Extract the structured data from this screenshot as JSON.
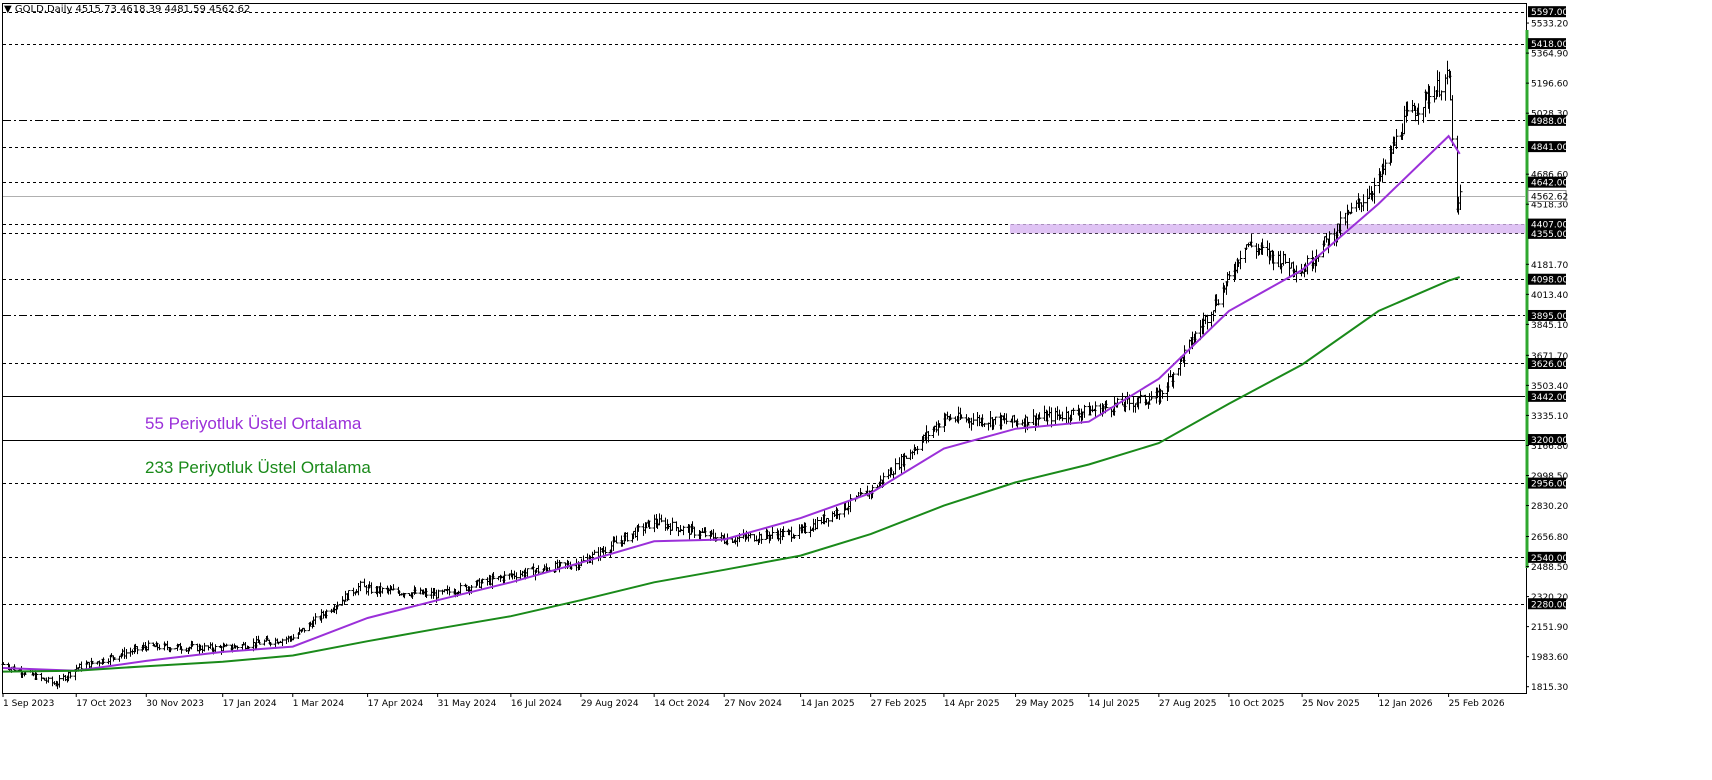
{
  "header": {
    "arrow": "▼",
    "symbol": "GOLD,Daily",
    "ohlc": "4515.73 4618.39 4481.59 4562.62"
  },
  "legend": {
    "ema55_label": "55 Periyotluk Üstel Ortalama",
    "ema233_label": "233 Periyotluk Üstel Ortalama",
    "ema55_color": "#9b30d9",
    "ema233_color": "#1a8a1a"
  },
  "chart_data": {
    "type": "ohlc",
    "title": "",
    "symbol": "GOLD",
    "timeframe": "Daily",
    "ylim": [
      1780,
      5640
    ],
    "x_tick_labels": [
      "1 Sep 2023",
      "17 Oct 2023",
      "30 Nov 2023",
      "17 Jan 2024",
      "1 Mar 2024",
      "17 Apr 2024",
      "31 May 2024",
      "16 Jul 2024",
      "29 Aug 2024",
      "14 Oct 2024",
      "27 Nov 2024",
      "14 Jan 2025",
      "27 Feb 2025",
      "14 Apr 2025",
      "29 May 2025",
      "14 Jul 2025",
      "27 Aug 2025",
      "10 Oct 2025",
      "25 Nov 2025",
      "12 Jan 2026",
      "25 Feb 2026"
    ],
    "y_tick_labels": [
      "5533.20",
      "5364.90",
      "5196.60",
      "5028.30",
      "4686.60",
      "4518.30",
      "4181.70",
      "4013.40",
      "3845.10",
      "3671.70",
      "3503.40",
      "3335.10",
      "3166.80",
      "2998.50",
      "2830.20",
      "2656.80",
      "2488.50",
      "2320.20",
      "2151.90",
      "1983.60",
      "1815.30"
    ],
    "horizontal_levels": [
      {
        "value": 5597.0,
        "style": "dashed"
      },
      {
        "value": 5418.0,
        "style": "dashed"
      },
      {
        "value": 4988.0,
        "style": "dashdot"
      },
      {
        "value": 4841.0,
        "style": "dashed"
      },
      {
        "value": 4642.0,
        "style": "dashed"
      },
      {
        "value": 4407.0,
        "style": "dashed"
      },
      {
        "value": 4355.0,
        "style": "dashed"
      },
      {
        "value": 4098.0,
        "style": "dashed"
      },
      {
        "value": 3895.0,
        "style": "dashdot"
      },
      {
        "value": 3626.0,
        "style": "dashed"
      },
      {
        "value": 3442.0,
        "style": "solid"
      },
      {
        "value": 3200.0,
        "style": "solid"
      },
      {
        "value": 2956.0,
        "style": "dashed"
      },
      {
        "value": 2540.0,
        "style": "dashed"
      },
      {
        "value": 2280.0,
        "style": "dashed"
      }
    ],
    "current_price": 4562.62,
    "support_zone": [
      4355.0,
      4407.0
    ],
    "series": [
      {
        "name": "55 Periyotluk Üstel Ortalama",
        "type": "ema",
        "color": "#9b30d9",
        "x": [
          "1 Sep 2023",
          "17 Oct 2023",
          "30 Nov 2023",
          "17 Jan 2024",
          "1 Mar 2024",
          "17 Apr 2024",
          "31 May 2024",
          "16 Jul 2024",
          "29 Aug 2024",
          "14 Oct 2024",
          "27 Nov 2024",
          "14 Jan 2025",
          "27 Feb 2025",
          "14 Apr 2025",
          "29 May 2025",
          "14 Jul 2025",
          "27 Aug 2025",
          "10 Oct 2025",
          "25 Nov 2025",
          "12 Jan 2026",
          "25 Feb 2026",
          "4 Mar 2026"
        ],
        "values": [
          1920,
          1905,
          1960,
          2010,
          2040,
          2200,
          2300,
          2400,
          2510,
          2630,
          2640,
          2760,
          2900,
          3150,
          3260,
          3300,
          3540,
          3920,
          4150,
          4520,
          4900,
          4800
        ]
      },
      {
        "name": "233 Periyotluk Üstel Ortalama",
        "type": "ema",
        "color": "#1a8a1a",
        "x": [
          "1 Sep 2023",
          "17 Oct 2023",
          "30 Nov 2023",
          "17 Jan 2024",
          "1 Mar 2024",
          "17 Apr 2024",
          "31 May 2024",
          "16 Jul 2024",
          "29 Aug 2024",
          "14 Oct 2024",
          "27 Nov 2024",
          "14 Jan 2025",
          "27 Feb 2025",
          "14 Apr 2025",
          "29 May 2025",
          "14 Jul 2025",
          "27 Aug 2025",
          "10 Oct 2025",
          "25 Nov 2025",
          "12 Jan 2026",
          "25 Feb 2026",
          "4 Mar 2026"
        ],
        "values": [
          1900,
          1905,
          1930,
          1955,
          1990,
          2070,
          2140,
          2210,
          2300,
          2400,
          2470,
          2550,
          2670,
          2830,
          2960,
          3060,
          3180,
          3400,
          3620,
          3920,
          4090,
          4110
        ]
      },
      {
        "name": "",
        "type": "price_close",
        "x": [
          "1 Sep 2023",
          "4 Oct 2023",
          "17 Oct 2023",
          "30 Nov 2023",
          "17 Jan 2024",
          "1 Mar 2024",
          "12 Apr 2024",
          "17 Apr 2024",
          "31 May 2024",
          "16 Jul 2024",
          "29 Aug 2024",
          "14 Oct 2024",
          "27 Nov 2024",
          "14 Jan 2025",
          "27 Feb 2025",
          "14 Apr 2025",
          "29 May 2025",
          "14 Jul 2025",
          "27 Aug 2025",
          "10 Oct 2025",
          "20 Oct 2025",
          "25 Nov 2025",
          "12 Jan 2026",
          "29 Jan 2026",
          "25 Feb 2026",
          "2 Mar 2026",
          "4 Mar 2026"
        ],
        "values": [
          1940,
          1830,
          1920,
          2040,
          2030,
          2090,
          2380,
          2360,
          2330,
          2440,
          2510,
          2740,
          2640,
          2680,
          2910,
          3320,
          3300,
          3360,
          3440,
          4100,
          4300,
          4150,
          4650,
          5000,
          5230,
          4450,
          4562.62
        ]
      }
    ]
  }
}
